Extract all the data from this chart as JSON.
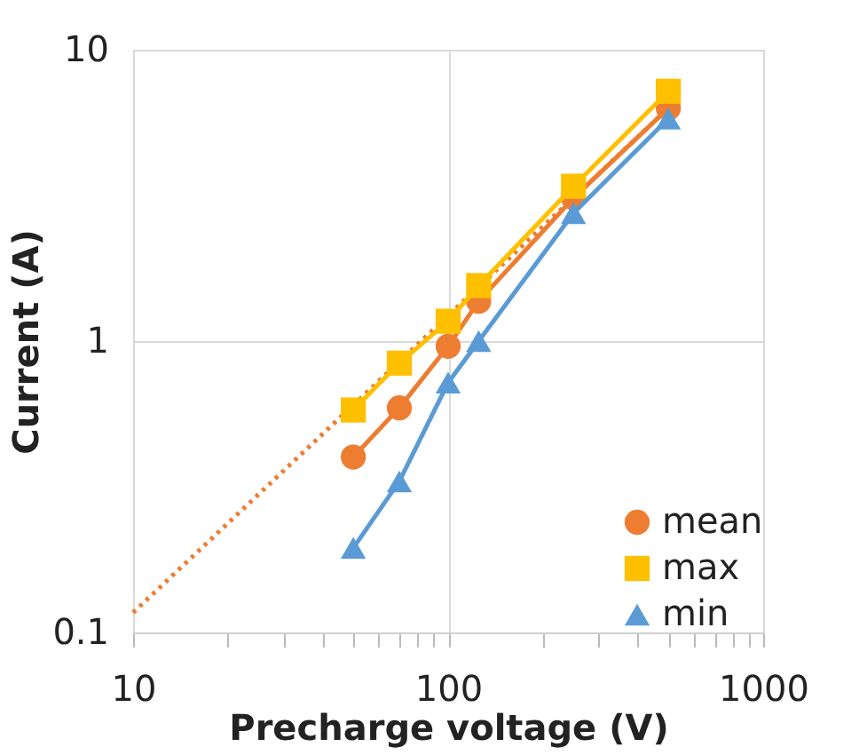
{
  "chart_data": {
    "type": "line",
    "xlabel": "Precharge voltage (V)",
    "ylabel": "Current (A)",
    "log": "xy",
    "grid": true,
    "legend": "bottom right",
    "xlim": [
      10,
      1000
    ],
    "ylim": [
      0.1,
      10
    ],
    "xticks": [
      10,
      {
        "value": 20,
        "label": null
      },
      {
        "value": 30,
        "label": null
      },
      {
        "value": 40,
        "label": null
      },
      {
        "value": 50,
        "label": null
      },
      {
        "value": 60,
        "label": null
      },
      {
        "value": 70,
        "label": null
      },
      {
        "value": 80,
        "label": null
      },
      {
        "value": 90,
        "label": null
      },
      100,
      {
        "value": 200,
        "label": null
      },
      {
        "value": 300,
        "label": null
      },
      {
        "value": 400,
        "label": null
      },
      {
        "value": 500,
        "label": null
      },
      {
        "value": 600,
        "label": null
      },
      {
        "value": 700,
        "label": null
      },
      {
        "value": 800,
        "label": null
      },
      {
        "value": 900,
        "label": null
      },
      1000
    ],
    "yticks": [
      0.1,
      1,
      10
    ],
    "x": [
      50,
      70,
      100,
      125,
      250,
      500
    ],
    "series": [
      {
        "type": "line",
        "color": "#ed7d31",
        "x": [
          10,
          500
        ],
        "values": [
          0.117,
          6.3
        ],
        "line_style": "dotted"
      },
      {
        "name": "mean",
        "color": "#ed7d31",
        "values": [
          0.4,
          0.59,
          0.96,
          1.37,
          3.1,
          6.3
        ],
        "marker": "circle",
        "line_style": "solid"
      },
      {
        "name": "max",
        "color": "#ffc000",
        "values": [
          0.58,
          0.84,
          1.17,
          1.55,
          3.4,
          7.2
        ],
        "marker": "square",
        "line_style": "solid"
      },
      {
        "name": "min",
        "color": "#5b9bd5",
        "values": [
          0.195,
          0.33,
          0.72,
          1.0,
          2.75,
          5.8
        ],
        "marker": "triangle",
        "line_style": "solid"
      }
    ]
  }
}
